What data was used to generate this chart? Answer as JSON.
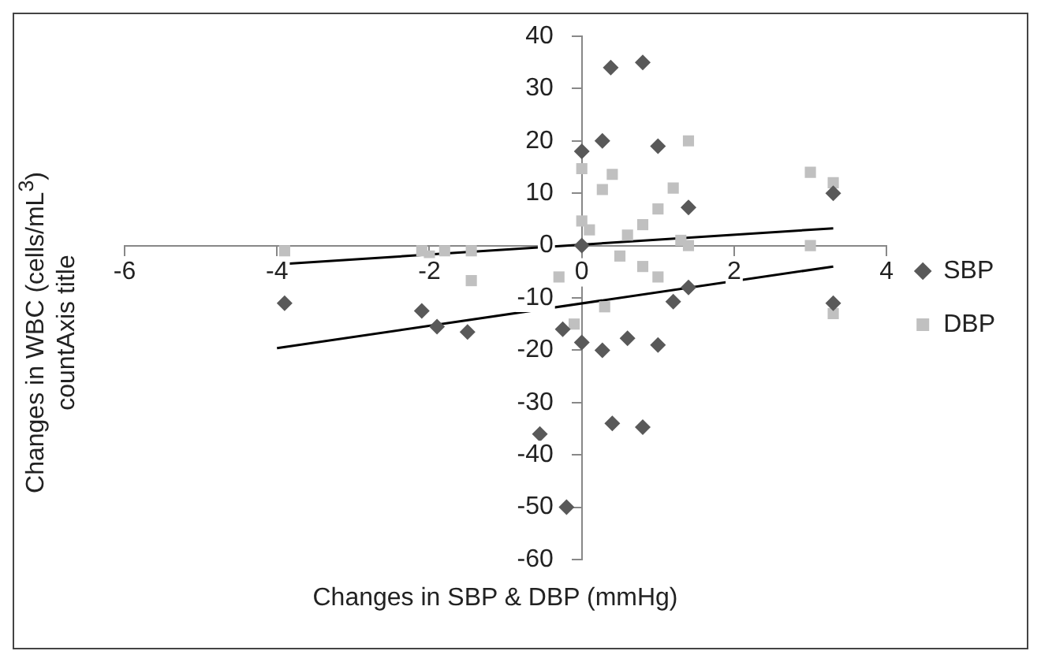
{
  "chart_data": {
    "type": "scatter",
    "xlabel": "Changes in SBP & DBP (mmHg)",
    "ylabel": "Changes in WBC (cells/mL$^{3}$) countAxis title",
    "xlim": [
      -6,
      4
    ],
    "xticks": [
      -6,
      -4,
      -2,
      0,
      2,
      4
    ],
    "ylim": [
      -60,
      40
    ],
    "yticks": [
      -60,
      -50,
      -40,
      -30,
      -20,
      -10,
      0,
      10,
      20,
      30,
      40
    ],
    "grid": false,
    "legend": "right",
    "series": [
      {
        "name": "SBP",
        "color": "#595959",
        "marker": "diamond",
        "x": [
          -3.9,
          -2.1,
          -1.9,
          -1.5,
          -0.55,
          -0.2,
          -0.25,
          0,
          0.27,
          0.6,
          1.0,
          1.2,
          1.4,
          0.4,
          0.8,
          0.38,
          0.8,
          0.27,
          1.0,
          1.4,
          0,
          0,
          3.3,
          3.3
        ],
        "values": [
          -11,
          -12.5,
          -15.5,
          -16.5,
          -36,
          -50,
          -16,
          -18.5,
          -20,
          -17.7,
          -19,
          -10.7,
          -8,
          -34,
          -34.7,
          34,
          35,
          20,
          19,
          7.3,
          18,
          0,
          10,
          -11
        ]
      },
      {
        "name": "DBP",
        "color": "#c0c0c0",
        "marker": "square",
        "x": [
          -3.9,
          -2.1,
          -2.0,
          -1.8,
          -1.45,
          -1.45,
          -0.3,
          0,
          0,
          0.1,
          0.4,
          0.27,
          -0.1,
          0.3,
          0.6,
          0.5,
          0.8,
          1.0,
          0.8,
          1.0,
          1.2,
          1.4,
          1.3,
          1.4,
          3.0,
          3.3,
          3.0,
          3.3
        ],
        "values": [
          -1,
          -1,
          -2,
          -1,
          -1,
          -6.7,
          -6,
          14.7,
          4.7,
          3,
          13.6,
          10.7,
          -15,
          -11.7,
          2,
          -2,
          4,
          7,
          -4,
          -6,
          11,
          20,
          1,
          0,
          14,
          12,
          0,
          -13
        ]
      },
      {
        "type": "line",
        "color": "#000000",
        "marker": "none",
        "x": [
          -4,
          3.3
        ],
        "values": [
          -19.6,
          -4
        ]
      },
      {
        "type": "line",
        "color": "#000000",
        "marker": "none",
        "x": [
          -4,
          3.3
        ],
        "values": [
          -3.6,
          3.3
        ]
      }
    ]
  }
}
